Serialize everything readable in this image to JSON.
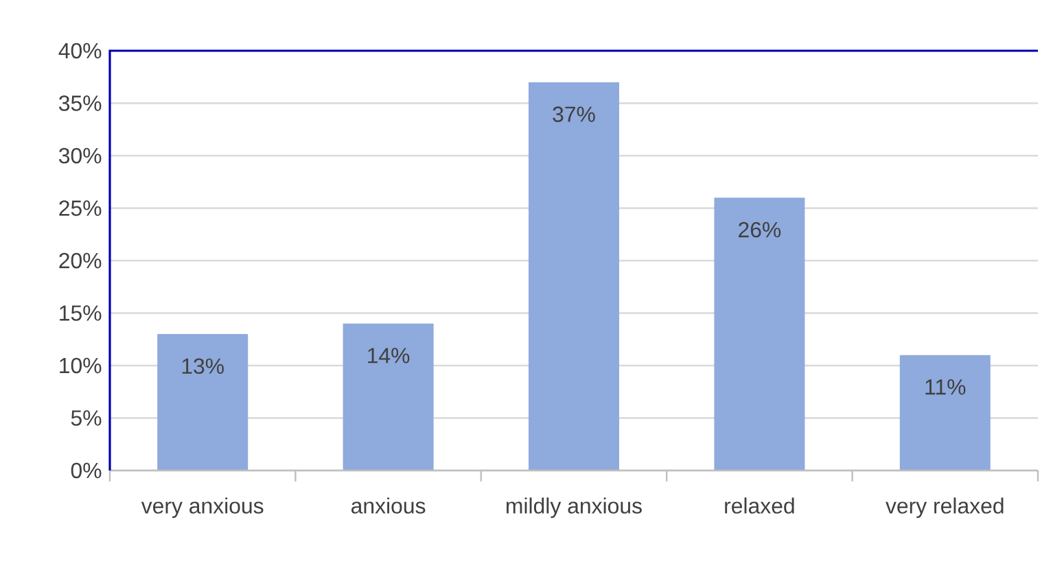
{
  "chart_data": {
    "type": "bar",
    "categories": [
      "very anxious",
      "anxious",
      "mildly anxious",
      "relaxed",
      "very relaxed"
    ],
    "values": [
      13,
      14,
      37,
      26,
      11
    ],
    "value_labels": [
      "13%",
      "14%",
      "37%",
      "26%",
      "11%"
    ],
    "color": "#8faadc",
    "ylim": [
      0,
      40
    ],
    "yticks": [
      {
        "value": 0,
        "label": "0%"
      },
      {
        "value": 5,
        "label": "5%"
      },
      {
        "value": 10,
        "label": "10%"
      },
      {
        "value": 15,
        "label": "15%"
      },
      {
        "value": 20,
        "label": "20%"
      },
      {
        "value": 25,
        "label": "25%"
      },
      {
        "value": 30,
        "label": "30%"
      },
      {
        "value": 35,
        "label": "35%"
      },
      {
        "value": 40,
        "label": "40%"
      }
    ],
    "grid": "y"
  }
}
